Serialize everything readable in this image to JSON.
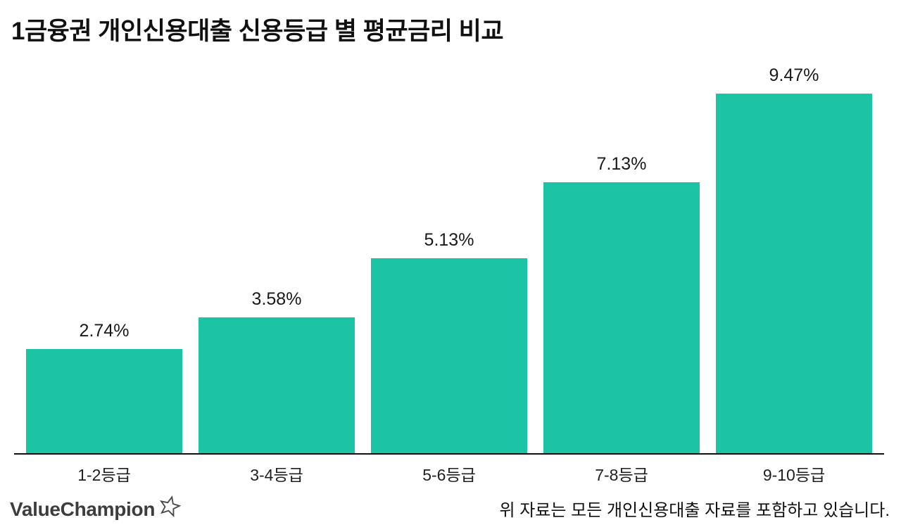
{
  "chart_data": {
    "type": "bar",
    "title": "1금융권 개인신용대출 신용등급 별 평균금리 비교",
    "categories": [
      "1-2등급",
      "3-4등급",
      "5-6등급",
      "7-8등급",
      "9-10등급"
    ],
    "values": [
      2.74,
      3.58,
      5.13,
      7.13,
      9.47
    ],
    "value_labels": [
      "2.74%",
      "3.58%",
      "5.13%",
      "7.13%",
      "9.47%"
    ],
    "xlabel": "",
    "ylabel": "",
    "ylim": [
      0,
      9.47
    ],
    "grid": false,
    "legend_position": "none",
    "bar_color": "#1dc3a5",
    "axis_color": "#111111"
  },
  "footer": {
    "logo_text": "ValueChampion",
    "note": "위 자료는 모든 개인신용대출 자료를 포함하고 있습니다."
  }
}
